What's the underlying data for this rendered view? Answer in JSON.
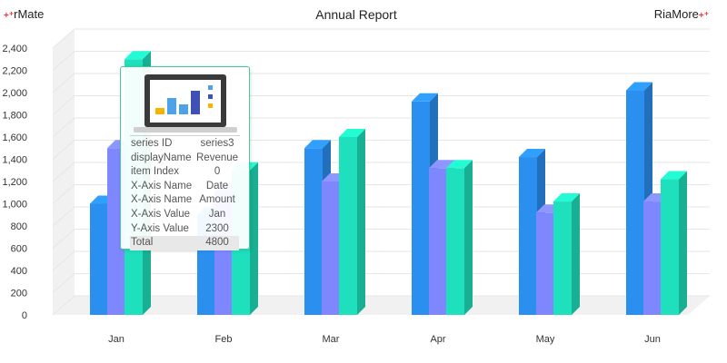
{
  "header": {
    "left_brand": "rMate",
    "right_brand": "RiaMore",
    "title": "Annual Report"
  },
  "chart_data": {
    "type": "bar",
    "title": "Annual Report",
    "categories": [
      "Jan",
      "Feb",
      "Mar",
      "Apr",
      "May",
      "Jun"
    ],
    "series": [
      {
        "id": "series1",
        "color": "#2b8ff0",
        "values": [
          1000,
          900,
          1500,
          1920,
          1420,
          2020
        ]
      },
      {
        "id": "series2",
        "color": "#7f87ff",
        "values": [
          1500,
          1100,
          1200,
          1320,
          920,
          1020
        ]
      },
      {
        "id": "series3",
        "color": "#1fe0bd",
        "values": [
          2300,
          1300,
          1600,
          1320,
          1020,
          1220
        ]
      }
    ],
    "ylim": [
      0,
      2400
    ],
    "yticks": [
      "0",
      "200",
      "400",
      "600",
      "800",
      "1,000",
      "1,200",
      "1,400",
      "1,600",
      "1,800",
      "2,000",
      "2,200",
      "2,400"
    ],
    "grid": true
  },
  "tooltip": {
    "rows": [
      {
        "key": "series ID",
        "value": "series3"
      },
      {
        "key": "displayName",
        "value": "Revenue"
      },
      {
        "key": "item Index",
        "value": "0"
      },
      {
        "key": "X-Axis Name",
        "value": "Date"
      },
      {
        "key": "X-Axis Name",
        "value": "Amount"
      },
      {
        "key": "X-Axis Value",
        "value": "Jan"
      },
      {
        "key": "Y-Axis Value",
        "value": "2300"
      },
      {
        "key": "Total",
        "value": "4800"
      }
    ]
  }
}
